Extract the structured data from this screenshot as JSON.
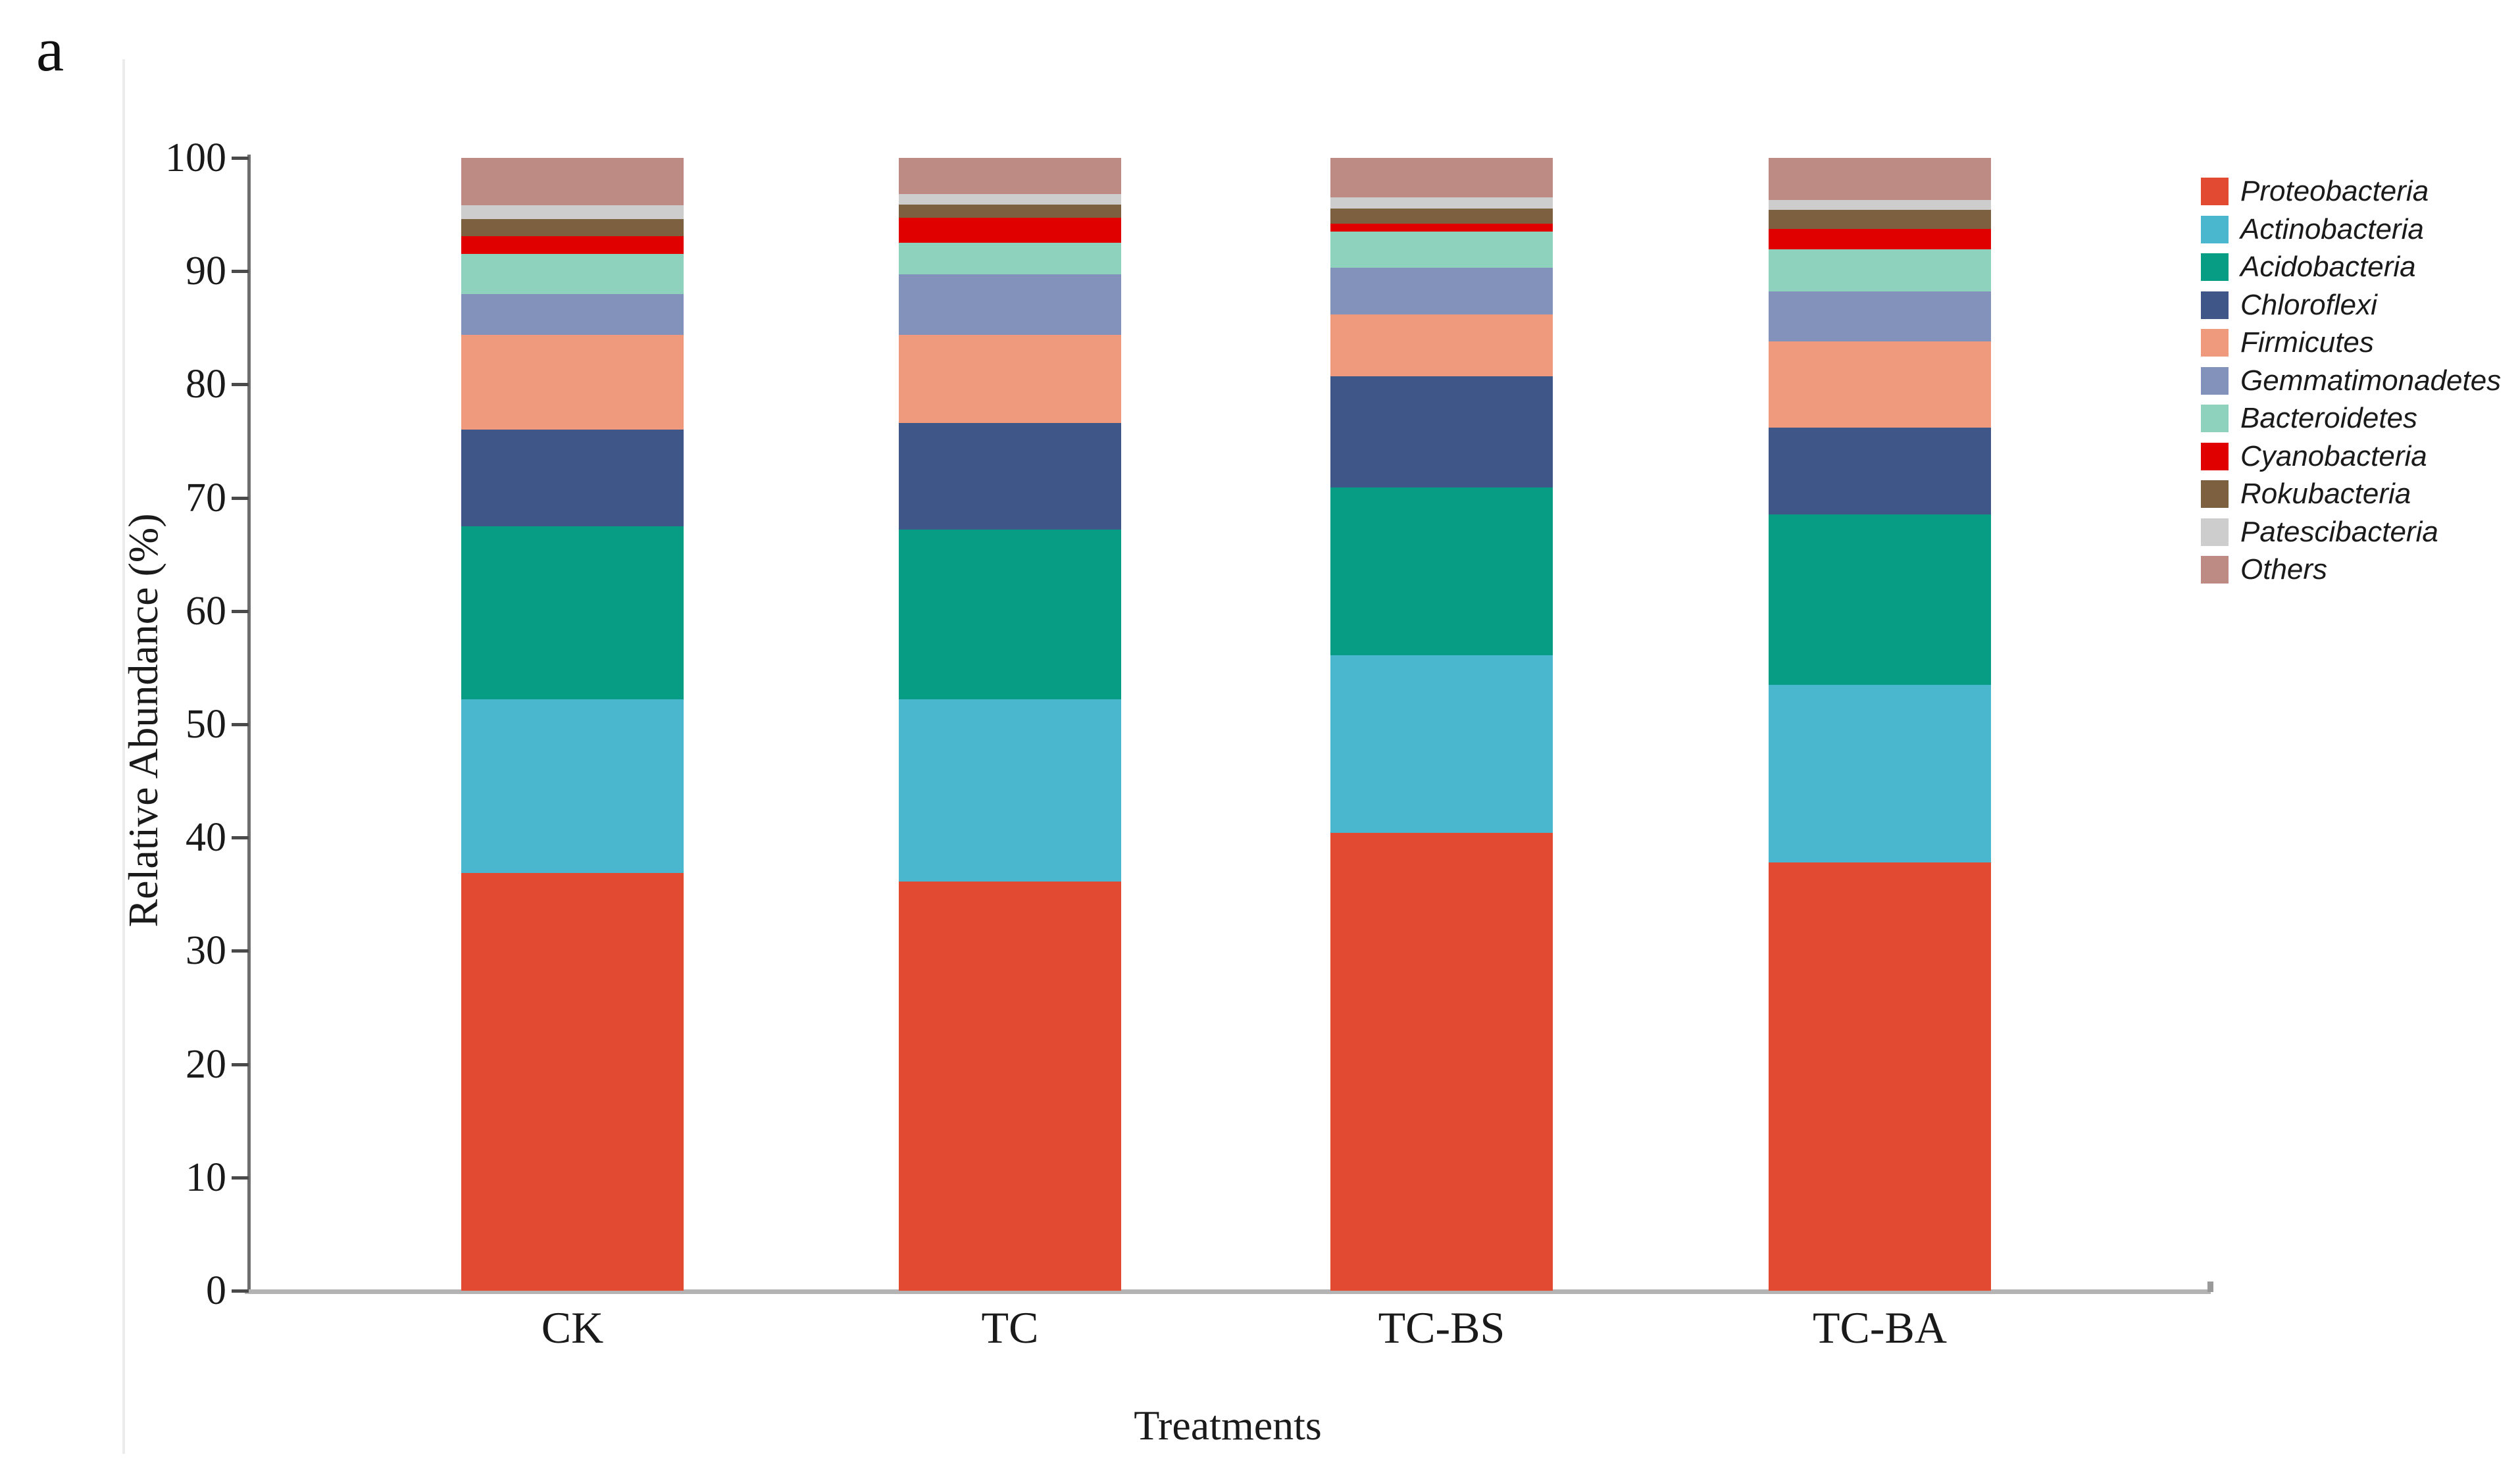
{
  "figure": {
    "panel_label": "a"
  },
  "chart_data": {
    "type": "bar",
    "stacked": true,
    "title": "",
    "xlabel": "Treatments",
    "ylabel": "Relative Abundance (%)",
    "categories": [
      "CK",
      "TC",
      "TC-BS",
      "TC-BA"
    ],
    "ylim": [
      0,
      100
    ],
    "ytick_interval": 10,
    "ytick_labels": [
      "0",
      "10",
      "20",
      "30",
      "40",
      "50",
      "60",
      "70",
      "80",
      "90",
      "100"
    ],
    "grid": false,
    "legend_position": "right",
    "series": [
      {
        "name": "Proteobacteria",
        "color": "#e24a32",
        "values": [
          36.9,
          36.1,
          40.4,
          37.8
        ]
      },
      {
        "name": "Actinobacteria",
        "color": "#4bb7ce",
        "values": [
          15.3,
          16.1,
          15.7,
          15.7
        ]
      },
      {
        "name": "Acidobacteria",
        "color": "#069d84",
        "values": [
          15.3,
          15.0,
          14.8,
          15.0
        ]
      },
      {
        "name": "Chloroflexi",
        "color": "#3f5689",
        "values": [
          8.5,
          9.4,
          9.8,
          7.7
        ]
      },
      {
        "name": "Firmicutes",
        "color": "#f09a7d",
        "values": [
          8.4,
          7.8,
          5.5,
          7.6
        ]
      },
      {
        "name": "Gemmatimonadetes",
        "color": "#8292bb",
        "values": [
          3.6,
          5.3,
          4.1,
          4.4
        ]
      },
      {
        "name": "Bacteroidetes",
        "color": "#8ed1bc",
        "values": [
          3.5,
          2.8,
          3.2,
          3.7
        ]
      },
      {
        "name": "Cyanobacteria",
        "color": "#e00000",
        "values": [
          1.6,
          2.2,
          0.7,
          1.8
        ]
      },
      {
        "name": "Rokubacteria",
        "color": "#7d6040",
        "values": [
          1.5,
          1.2,
          1.3,
          1.7
        ]
      },
      {
        "name": "Patescibacteria",
        "color": "#cdcdcd",
        "values": [
          1.2,
          0.9,
          1.0,
          0.9
        ]
      },
      {
        "name": "Others",
        "color": "#bd8b83",
        "values": [
          4.2,
          3.2,
          3.5,
          3.7
        ]
      }
    ]
  }
}
